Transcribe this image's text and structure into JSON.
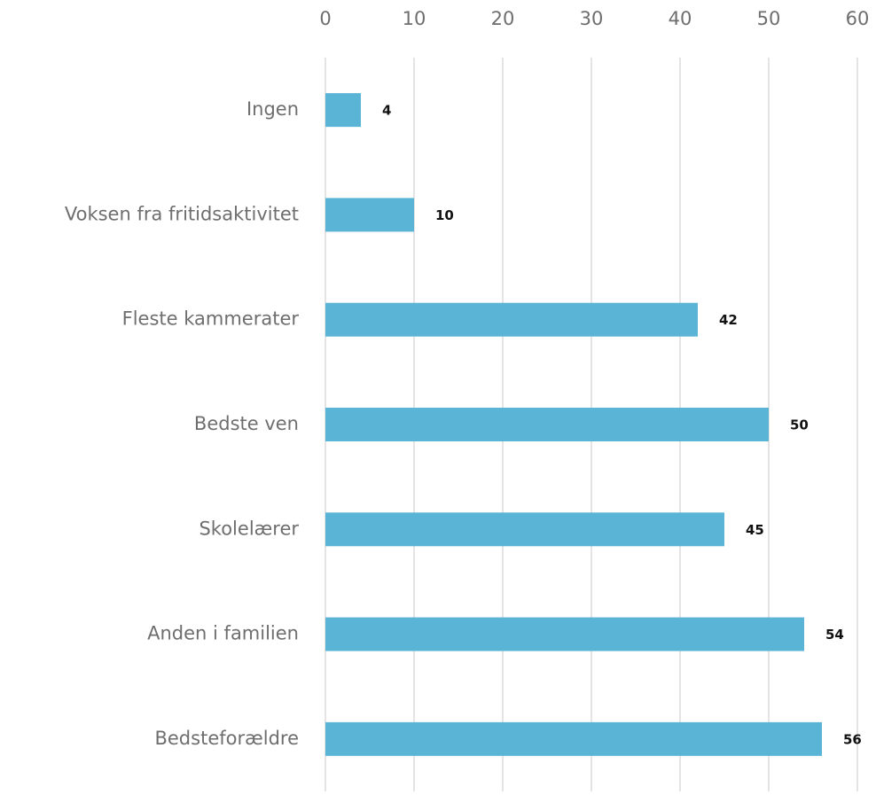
{
  "chart_data": {
    "type": "bar",
    "orientation": "horizontal",
    "categories": [
      "Ingen",
      "Voksen fra fritidsaktivitet",
      "Fleste kammerater",
      "Bedste ven",
      "Skolelærer",
      "Anden i familien",
      "Bedsteforældre"
    ],
    "values": [
      4,
      10,
      42,
      50,
      45,
      54,
      56
    ],
    "color": "#5ab4d6",
    "xlim": [
      0,
      60
    ],
    "xticks": [
      0,
      10,
      20,
      30,
      40,
      50,
      60
    ],
    "grid": true
  }
}
